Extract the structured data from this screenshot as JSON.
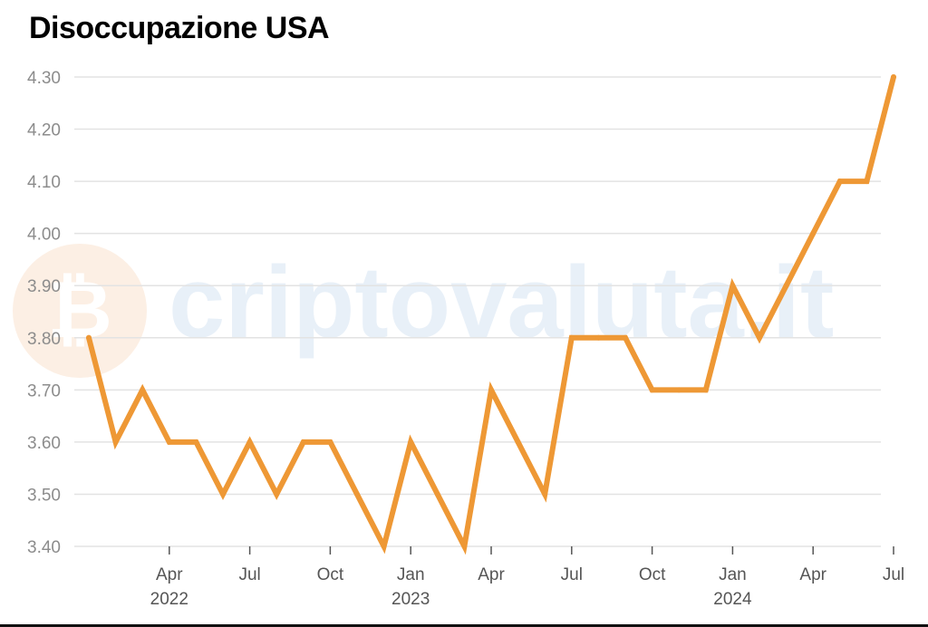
{
  "title": "Disoccupazione USA",
  "watermark": "criptovaluta.it",
  "colors": {
    "line": "#EE9835",
    "grid": "#E3E3E3",
    "watermark_text": "#E8F0F8",
    "watermark_logo": "#FCEFE4"
  },
  "chart_data": {
    "type": "line",
    "title": "Disoccupazione USA",
    "xlabel": "",
    "ylabel": "",
    "ylim": [
      3.4,
      4.3
    ],
    "yticks": [
      "3.40",
      "3.50",
      "3.60",
      "3.70",
      "3.80",
      "3.90",
      "4.00",
      "4.10",
      "4.20",
      "4.30"
    ],
    "x": [
      "2022-01",
      "2022-02",
      "2022-03",
      "2022-04",
      "2022-05",
      "2022-06",
      "2022-07",
      "2022-08",
      "2022-09",
      "2022-10",
      "2022-11",
      "2022-12",
      "2023-01",
      "2023-02",
      "2023-03",
      "2023-04",
      "2023-05",
      "2023-06",
      "2023-07",
      "2023-08",
      "2023-09",
      "2023-10",
      "2023-11",
      "2023-12",
      "2024-01",
      "2024-02",
      "2024-03",
      "2024-04",
      "2024-05",
      "2024-06",
      "2024-07"
    ],
    "series": [
      {
        "values": [
          3.8,
          3.6,
          3.7,
          3.6,
          3.6,
          3.5,
          3.6,
          3.5,
          3.6,
          3.6,
          3.5,
          3.4,
          3.6,
          3.5,
          3.4,
          3.7,
          3.6,
          3.5,
          3.8,
          3.8,
          3.8,
          3.7,
          3.7,
          3.7,
          3.9,
          3.8,
          3.9,
          4.0,
          4.1,
          4.1,
          4.3
        ]
      }
    ],
    "xticks": [
      {
        "x": "2022-04",
        "label": "Apr",
        "year": "2022"
      },
      {
        "x": "2022-07",
        "label": "Jul",
        "year": ""
      },
      {
        "x": "2022-10",
        "label": "Oct",
        "year": ""
      },
      {
        "x": "2023-01",
        "label": "Jan",
        "year": "2023"
      },
      {
        "x": "2023-04",
        "label": "Apr",
        "year": ""
      },
      {
        "x": "2023-07",
        "label": "Jul",
        "year": ""
      },
      {
        "x": "2023-10",
        "label": "Oct",
        "year": ""
      },
      {
        "x": "2024-01",
        "label": "Jan",
        "year": "2024"
      },
      {
        "x": "2024-04",
        "label": "Apr",
        "year": ""
      },
      {
        "x": "2024-07",
        "label": "Jul",
        "year": ""
      }
    ],
    "grid": true,
    "legend": "none"
  }
}
